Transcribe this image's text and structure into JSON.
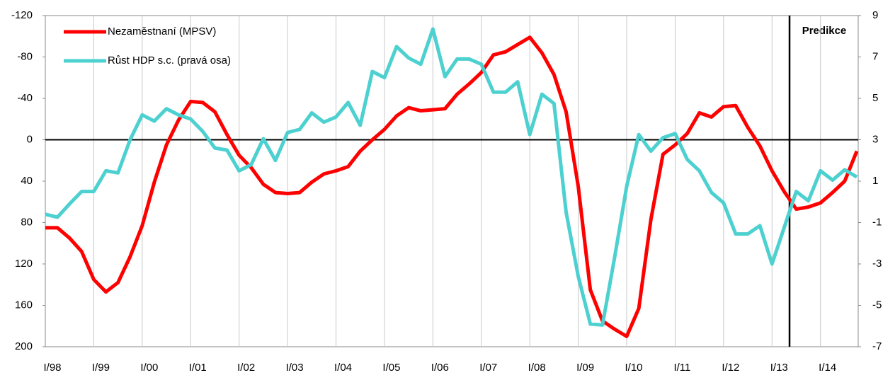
{
  "chart_data": {
    "type": "line",
    "annotation": "Predikce",
    "categories": [
      "I/98",
      null,
      null,
      null,
      "I/99",
      null,
      null,
      null,
      "I/00",
      null,
      null,
      null,
      "I/01",
      null,
      null,
      null,
      "I/02",
      null,
      null,
      null,
      "I/03",
      null,
      null,
      null,
      "I/04",
      null,
      null,
      null,
      "I/05",
      null,
      null,
      null,
      "I/06",
      null,
      null,
      null,
      "I/07",
      null,
      null,
      null,
      "I/08",
      null,
      null,
      null,
      "I/09",
      null,
      null,
      null,
      "I/10",
      null,
      null,
      null,
      "I/11",
      null,
      null,
      null,
      "I/12",
      null,
      null,
      null,
      "I/13",
      null,
      null,
      null,
      "I/14",
      null,
      null,
      null
    ],
    "series": [
      {
        "name": "Nezaměstnaní (MPSV)",
        "color": "#ff0000",
        "axis": "y",
        "values": [
          85,
          85,
          95,
          108,
          135,
          147,
          138,
          113,
          83,
          41,
          5,
          -19,
          -37,
          -36,
          -27,
          -5,
          15,
          27,
          43,
          51,
          52,
          51,
          41,
          33,
          30,
          26,
          11,
          0,
          -10,
          -23,
          -31,
          -28,
          -29,
          -30,
          -44,
          -54,
          -65,
          -82,
          -85,
          -92,
          -99,
          -84,
          -63,
          -27,
          45,
          145,
          175,
          183,
          190,
          163,
          77,
          14,
          5,
          -6,
          -26,
          -22,
          -32,
          -33,
          -12,
          6,
          30,
          50,
          67,
          65,
          61,
          51,
          40,
          11
        ]
      },
      {
        "name": "Růst HDP s.c. (pravá osa)",
        "color": "#4dd0d0",
        "axis": "y2",
        "values": [
          -0.6,
          -0.74,
          -0.1,
          0.5,
          0.5,
          1.5,
          1.4,
          3.0,
          4.2,
          3.9,
          4.5,
          4.2,
          4.0,
          3.4,
          2.6,
          2.5,
          1.5,
          1.8,
          3.05,
          2.0,
          3.35,
          3.5,
          4.3,
          3.85,
          4.1,
          4.8,
          3.7,
          6.3,
          6.0,
          7.5,
          6.95,
          6.65,
          8.35,
          6.05,
          6.9,
          6.9,
          6.65,
          5.3,
          5.3,
          5.8,
          3.25,
          5.2,
          4.75,
          -0.5,
          -3.6,
          -5.9,
          -5.95,
          -2.7,
          0.75,
          3.25,
          2.45,
          3.1,
          3.3,
          2.05,
          1.5,
          0.45,
          -0.05,
          -1.55,
          -1.55,
          -1.15,
          -3.0,
          -1.25,
          0.5,
          0.05,
          1.5,
          1.05,
          1.55,
          1.2
        ]
      }
    ],
    "ylim": [
      -120,
      200
    ],
    "y_reversed": true,
    "yticks": [
      -120,
      -80,
      -40,
      0,
      40,
      80,
      120,
      160,
      200
    ],
    "y2lim": [
      -7,
      9
    ],
    "y2ticks": [
      -7,
      -5,
      -3,
      -1,
      1,
      3,
      5,
      7,
      9
    ],
    "grid": "x",
    "legend": "top-left"
  }
}
